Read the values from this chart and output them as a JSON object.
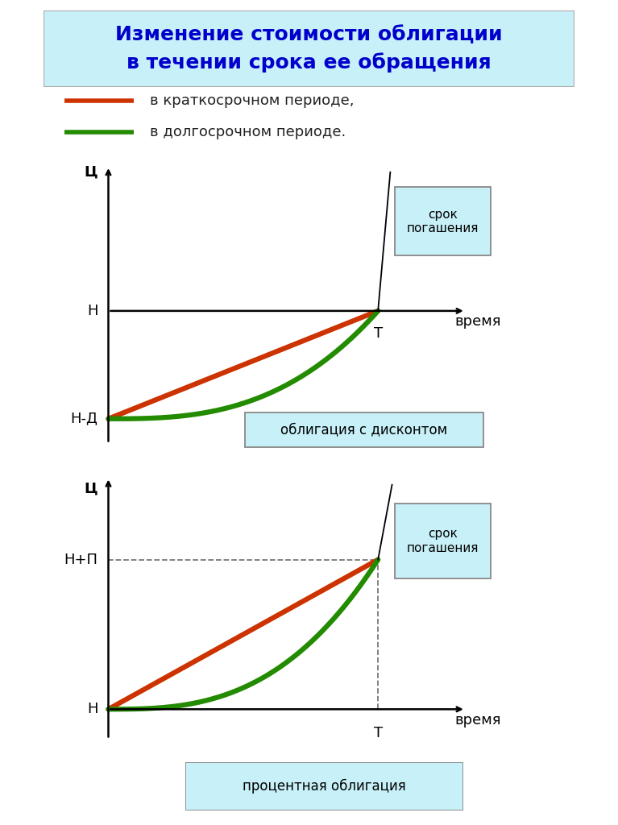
{
  "title": "Изменение стоимости облигации\nв течении срока ее обращения",
  "title_bg": "#c8f0f8",
  "title_color": "#0000cc",
  "legend_red_label": "в краткосрочном периоде,",
  "legend_green_label": "в долгосрочном периоде.",
  "red_color": "#cc3300",
  "green_color": "#228B00",
  "box_bg": "#c8f0f8",
  "box_edge": "#888888",
  "background_color": "#ffffff",
  "text_color": "#222222",
  "label_fontsize": 13,
  "title_fontsize": 18,
  "legend_fontsize": 13,
  "axis_label_fontsize": 13
}
